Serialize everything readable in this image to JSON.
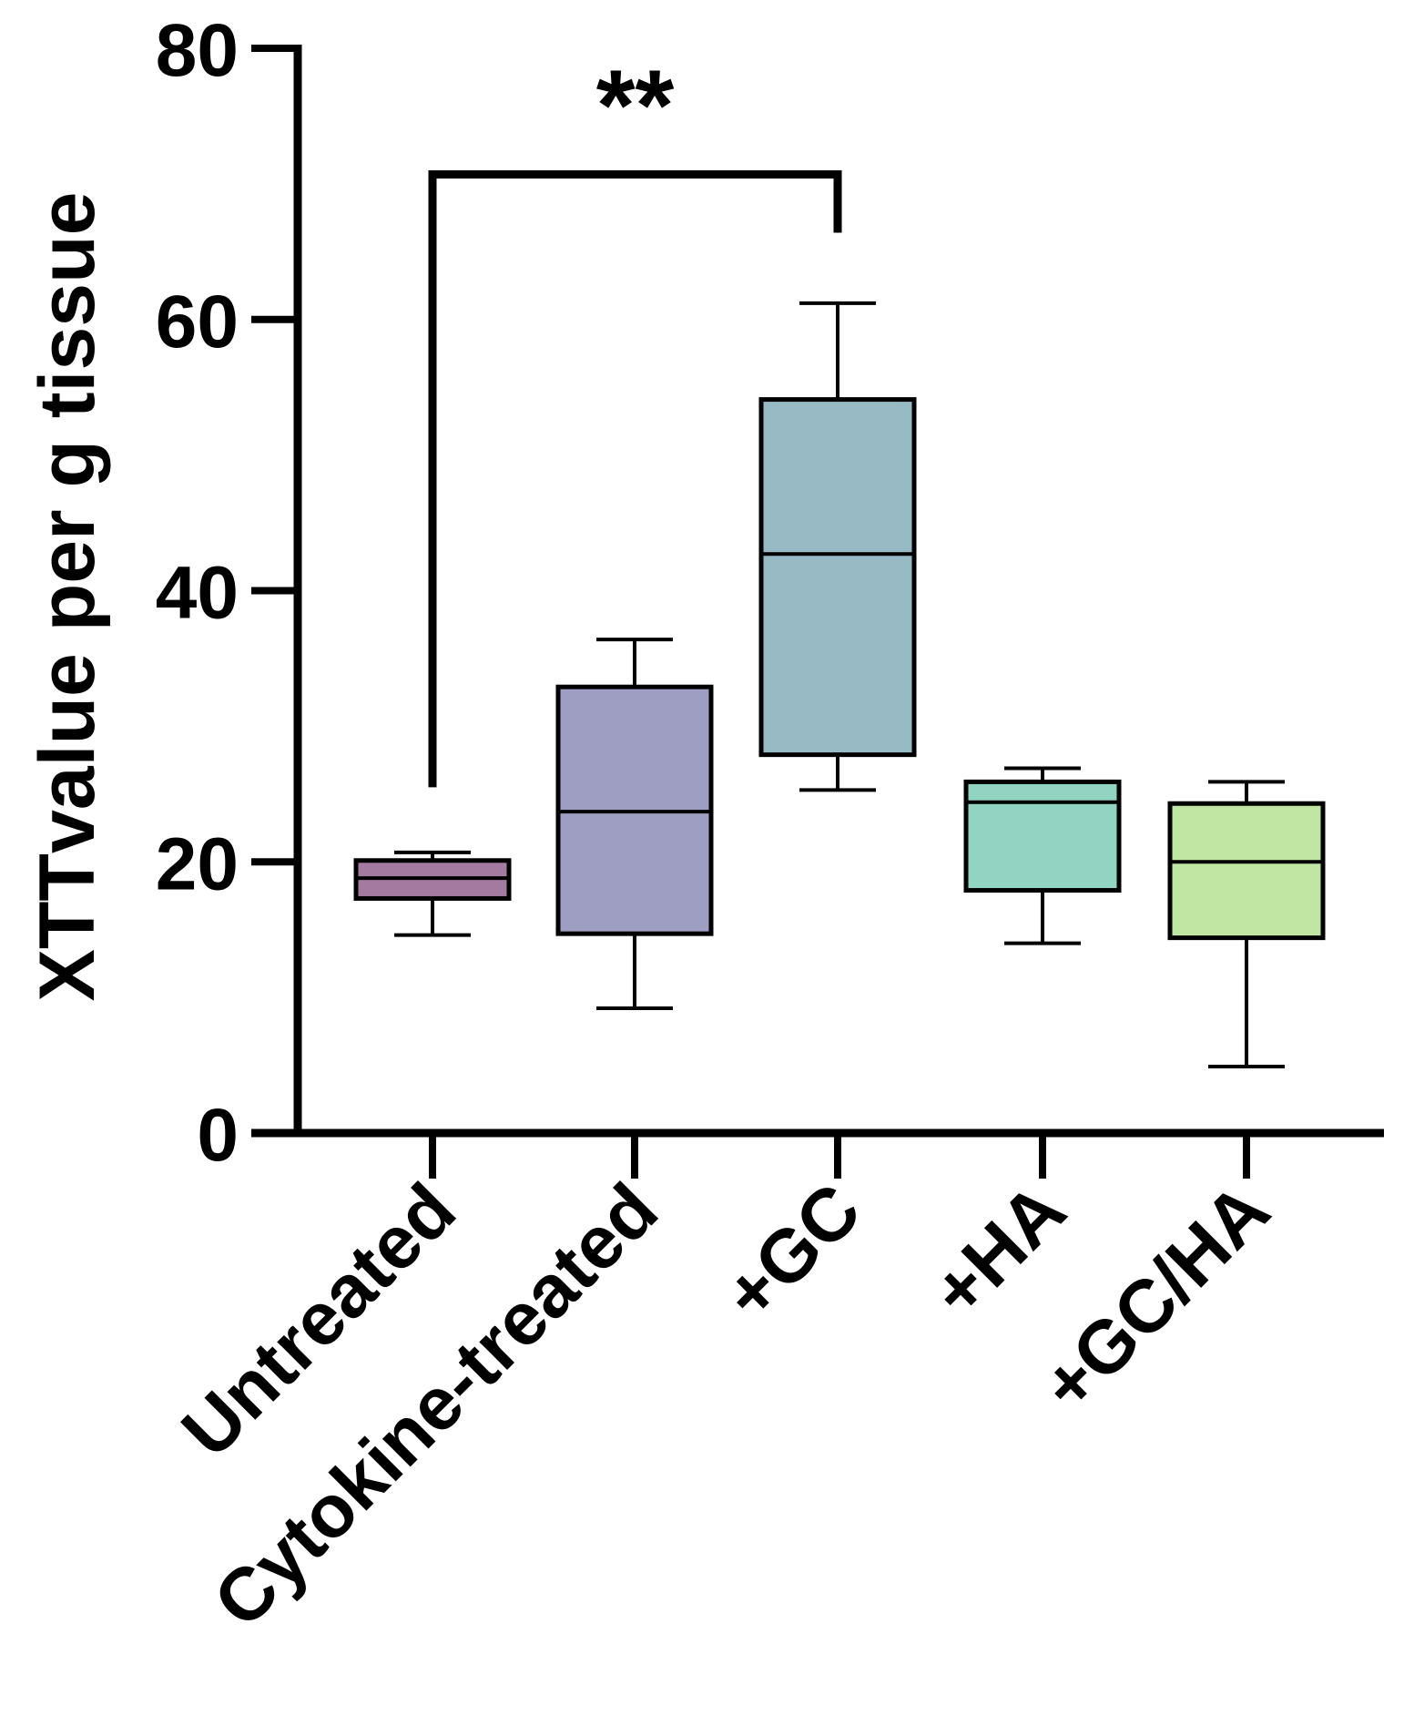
{
  "chart_data": {
    "type": "box",
    "title": "",
    "xlabel": "",
    "ylabel": "XTTvalue per g tissue",
    "ylim": [
      0,
      80
    ],
    "yticks": [
      0,
      20,
      40,
      60,
      80
    ],
    "categories": [
      "Untreated",
      "Cytokine-treated",
      "+GC",
      "+HA",
      "+GC/HA"
    ],
    "boxes": [
      {
        "name": "Untreated",
        "min": 14.6,
        "q1": 17.3,
        "median": 18.8,
        "q3": 20.1,
        "max": 20.7,
        "color": "#a47aa0"
      },
      {
        "name": "Cytokine-treated",
        "min": 9.2,
        "q1": 14.7,
        "median": 23.7,
        "q3": 32.9,
        "max": 36.4,
        "color": "#9e9ec2"
      },
      {
        "name": "+GC",
        "min": 25.3,
        "q1": 27.9,
        "median": 42.7,
        "q3": 54.1,
        "max": 61.2,
        "color": "#97bac4"
      },
      {
        "name": "+HA",
        "min": 14.0,
        "q1": 17.9,
        "median": 24.4,
        "q3": 25.9,
        "max": 26.9,
        "color": "#91d4c1"
      },
      {
        "name": "+GC/HA",
        "min": 4.9,
        "q1": 14.4,
        "median": 20.0,
        "q3": 24.3,
        "max": 25.9,
        "color": "#bfe6a2"
      }
    ],
    "annotations": [
      {
        "label": "**",
        "from": "Untreated",
        "to": "+GC",
        "left_end": 25.5,
        "right_end": 66.4,
        "bar_y": 70.7
      }
    ]
  }
}
